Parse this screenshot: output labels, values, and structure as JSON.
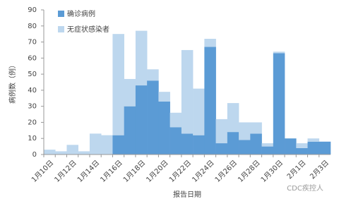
{
  "chart_data": {
    "type": "stacked-bar",
    "x_label": "报告日期",
    "y_label": "病例数（例）",
    "watermark": "CDC疾控人",
    "categories": [
      "1月10日",
      null,
      "1月12日",
      null,
      "1月14日",
      null,
      "1月16日",
      null,
      "1月18日",
      null,
      "1月20日",
      null,
      "1月22日",
      null,
      "1月24日",
      null,
      "1月26日",
      null,
      "1月28日",
      null,
      "1月30日",
      null,
      "2月1日",
      null,
      "2月3日"
    ],
    "series": [
      {
        "name": "确诊病例",
        "color": "#5b9bd5",
        "values": [
          0,
          0,
          0,
          0,
          0,
          0,
          12,
          30,
          43,
          46,
          33,
          17,
          13,
          12,
          67,
          7,
          14,
          9,
          13,
          5,
          63,
          10,
          4,
          8,
          8
        ]
      },
      {
        "name": "无症状感染者",
        "color": "#bdd7ee",
        "values": [
          3,
          2,
          6,
          2,
          13,
          12,
          63,
          17,
          34,
          7,
          6,
          9,
          52,
          29,
          5,
          15,
          18,
          11,
          7,
          2,
          1,
          0,
          3,
          2,
          0
        ]
      }
    ],
    "ylim": [
      0,
      90
    ],
    "yticks": [
      0,
      10,
      20,
      30,
      40,
      50,
      60,
      70,
      80,
      90
    ],
    "legend": "top-left"
  }
}
